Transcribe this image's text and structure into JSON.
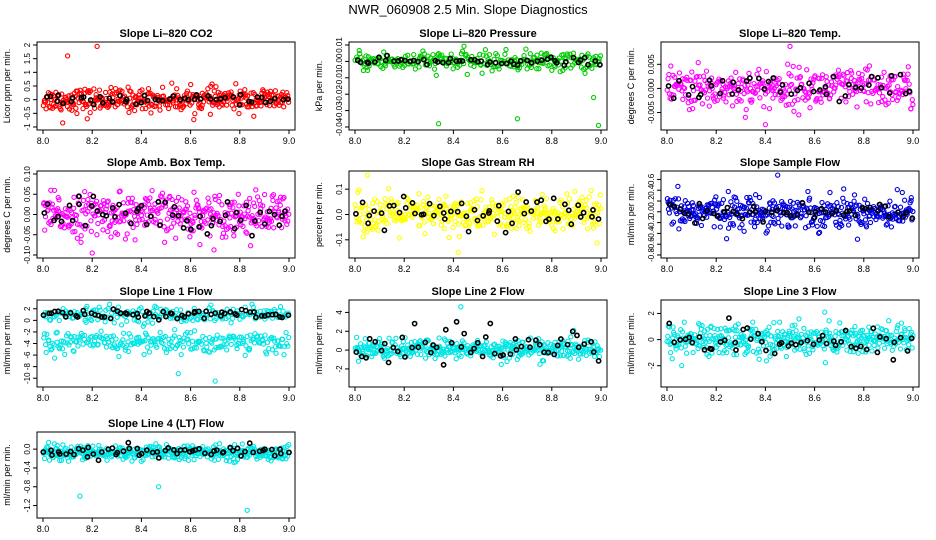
{
  "page_title": "NWR_060908  2.5 Min. Slope Diagnostics",
  "chart_data": [
    {
      "type": "scatter",
      "title": "Slope Li–820 CO2",
      "ylabel": "Licor ppm per min.",
      "xlim": [
        8.0,
        9.0
      ],
      "ylim": [
        -1.0,
        2.0
      ],
      "yticks": [
        -1,
        -0.5,
        0,
        0.5,
        1,
        1.5,
        2
      ],
      "ytick_labels": [
        "-1",
        "-0.5",
        "0",
        "0.5",
        "1",
        "1.5",
        "2"
      ],
      "series": [
        {
          "color": "#ff0000",
          "center": 0.0,
          "spread": 0.28,
          "count": 380,
          "outliers": [
            [
              8.1,
              1.6
            ],
            [
              8.22,
              1.95
            ],
            [
              8.08,
              -0.85
            ],
            [
              8.18,
              -0.7
            ]
          ]
        },
        {
          "color": "#000000",
          "center": 0.0,
          "spread": 0.1,
          "count": 50
        }
      ]
    },
    {
      "type": "scatter",
      "title": "Slope Li–820 Pressure",
      "ylabel": "kPa per min.",
      "xlim": [
        8.0,
        9.0
      ],
      "ylim": [
        -0.04,
        0.01
      ],
      "yticks": [
        -0.04,
        -0.03,
        -0.02,
        -0.01,
        0,
        0.01
      ],
      "ytick_labels": [
        "-0.04",
        "-0.03",
        "-0.02",
        "-0.01",
        "0.00",
        "0.01"
      ],
      "series": [
        {
          "color": "#00cc00",
          "center": 0.0,
          "spread": 0.004,
          "count": 280,
          "outliers": [
            [
              8.34,
              -0.038
            ],
            [
              8.99,
              -0.039
            ],
            [
              8.66,
              -0.035
            ],
            [
              8.97,
              -0.022
            ]
          ]
        },
        {
          "color": "#000000",
          "center": 0.0,
          "spread": 0.0015,
          "count": 55
        }
      ]
    },
    {
      "type": "scatter",
      "title": "Slope Li–820 Temp.",
      "ylabel": "degrees C per min.",
      "xlim": [
        8.0,
        9.0
      ],
      "ylim": [
        -0.008,
        0.009
      ],
      "yticks": [
        -0.005,
        0,
        0.005
      ],
      "ytick_labels": [
        "-0.005",
        "0.000",
        "0.005"
      ],
      "series": [
        {
          "color": "#ff00ff",
          "center": 0.0,
          "spread": 0.0028,
          "count": 360,
          "outliers": [
            [
              8.5,
              0.0087
            ],
            [
              8.4,
              -0.0075
            ]
          ]
        },
        {
          "color": "#000000",
          "center": 0.0,
          "spread": 0.002,
          "count": 45
        }
      ]
    },
    {
      "type": "scatter",
      "title": "Slope Amb. Box Temp.",
      "ylabel": "degrees C per min.",
      "xlim": [
        8.0,
        9.0
      ],
      "ylim": [
        -0.1,
        0.1
      ],
      "yticks": [
        -0.1,
        -0.05,
        0,
        0.05,
        0.1
      ],
      "ytick_labels": [
        "-0.10",
        "-0.05",
        "0.00",
        "0.05",
        "0.10"
      ],
      "series": [
        {
          "color": "#ff00ff",
          "center": 0.0,
          "spread": 0.035,
          "count": 400,
          "outliers": [
            [
              8.2,
              -0.095
            ]
          ]
        },
        {
          "color": "#000000",
          "center": 0.0,
          "spread": 0.03,
          "count": 55
        }
      ]
    },
    {
      "type": "scatter",
      "title": "Slope Gas Stream RH",
      "ylabel": "percent per min.",
      "xlim": [
        8.0,
        9.0
      ],
      "ylim": [
        -0.16,
        0.16
      ],
      "yticks": [
        -0.1,
        0,
        0.1
      ],
      "ytick_labels": [
        "-0.1",
        "0.0",
        "0.1"
      ],
      "series": [
        {
          "color": "#ffff00",
          "center": 0.0,
          "spread": 0.05,
          "count": 400,
          "outliers": [
            [
              8.05,
              0.155
            ],
            [
              8.42,
              -0.15
            ]
          ]
        },
        {
          "color": "#000000",
          "center": 0.0,
          "spread": 0.045,
          "count": 55
        }
      ]
    },
    {
      "type": "scatter",
      "title": "Slope Sample Flow",
      "ylabel": "ml/min per min.",
      "xlim": [
        8.0,
        9.0
      ],
      "ylim": [
        -0.8,
        0.7
      ],
      "yticks": [
        -0.8,
        -0.6,
        -0.4,
        -0.2,
        0,
        0.2,
        0.4,
        0.6
      ],
      "ytick_labels": [
        "-0.8",
        "-0.6",
        "-0.4",
        "-0.2",
        "0.0",
        "0.2",
        "0.4",
        "0.6"
      ],
      "series": [
        {
          "color": "#0000dd",
          "center": 0.0,
          "spread": 0.2,
          "count": 420,
          "outliers": [
            [
              8.45,
              0.68
            ]
          ]
        },
        {
          "color": "#000000",
          "center": 0.0,
          "spread": 0.12,
          "count": 50
        }
      ]
    },
    {
      "type": "scatter",
      "title": "Slope Line 1 Flow",
      "ylabel": "ml/min per min.",
      "xlim": [
        8.0,
        9.0
      ],
      "ylim": [
        -11,
        3
      ],
      "yticks": [
        -10,
        -8,
        -6,
        -4,
        -2,
        0,
        2
      ],
      "ytick_labels": [
        "-10",
        "-8",
        "-6",
        "-4",
        "-2",
        "0",
        "2"
      ],
      "series": [
        {
          "color": "#00e5e5",
          "center": 1.0,
          "spread": 0.9,
          "count": 220
        },
        {
          "color": "#00e5e5",
          "center": -3.8,
          "spread": 1.3,
          "count": 260,
          "outliers": [
            [
              8.7,
              -10.5
            ],
            [
              8.55,
              -9.2
            ]
          ]
        },
        {
          "color": "#000000",
          "center": 1.0,
          "spread": 0.5,
          "count": 65
        }
      ]
    },
    {
      "type": "scatter",
      "title": "Slope Line 2 Flow",
      "ylabel": "ml/min per min.",
      "xlim": [
        8.0,
        9.0
      ],
      "ylim": [
        -3.6,
        5
      ],
      "yticks": [
        -2,
        0,
        2,
        4
      ],
      "ytick_labels": [
        "-2",
        "0",
        "2",
        "4"
      ],
      "series": [
        {
          "color": "#00e5e5",
          "center": 0.1,
          "spread": 0.7,
          "count": 400,
          "outliers": [
            [
              8.43,
              4.6
            ]
          ]
        },
        {
          "color": "#000000",
          "center": 0.3,
          "spread": 1.4,
          "count": 55
        }
      ]
    },
    {
      "type": "scatter",
      "title": "Slope Line 3 Flow",
      "ylabel": "ml/min per min.",
      "xlim": [
        8.0,
        9.0
      ],
      "ylim": [
        -3.4,
        2.8
      ],
      "yticks": [
        -2,
        0,
        2
      ],
      "ytick_labels": [
        "-2",
        "0",
        "2"
      ],
      "series": [
        {
          "color": "#00e5e5",
          "center": 0.0,
          "spread": 0.85,
          "count": 420
        },
        {
          "color": "#000000",
          "center": 0.0,
          "spread": 0.9,
          "count": 50
        }
      ]
    },
    {
      "type": "scatter",
      "title": "Slope Line 4 (LT) Flow",
      "ylabel": "ml/min per min.",
      "xlim": [
        8.0,
        9.0
      ],
      "ylim": [
        -1.4,
        0.3
      ],
      "yticks": [
        -1.2,
        -0.8,
        -0.4,
        0
      ],
      "ytick_labels": [
        "-1.2",
        "-0.8",
        "-0.4",
        "0.0"
      ],
      "series": [
        {
          "color": "#00e5e5",
          "center": -0.08,
          "spread": 0.1,
          "count": 420,
          "outliers": [
            [
              8.15,
              -1.0
            ],
            [
              8.83,
              -1.3
            ],
            [
              8.47,
              -0.8
            ]
          ]
        },
        {
          "color": "#000000",
          "center": -0.05,
          "spread": 0.09,
          "count": 60
        }
      ]
    }
  ],
  "x_ticks": [
    8.0,
    8.2,
    8.4,
    8.6,
    8.8,
    9.0
  ],
  "x_tick_labels": [
    "8.0",
    "8.2",
    "8.4",
    "8.6",
    "8.8",
    "9.0"
  ]
}
